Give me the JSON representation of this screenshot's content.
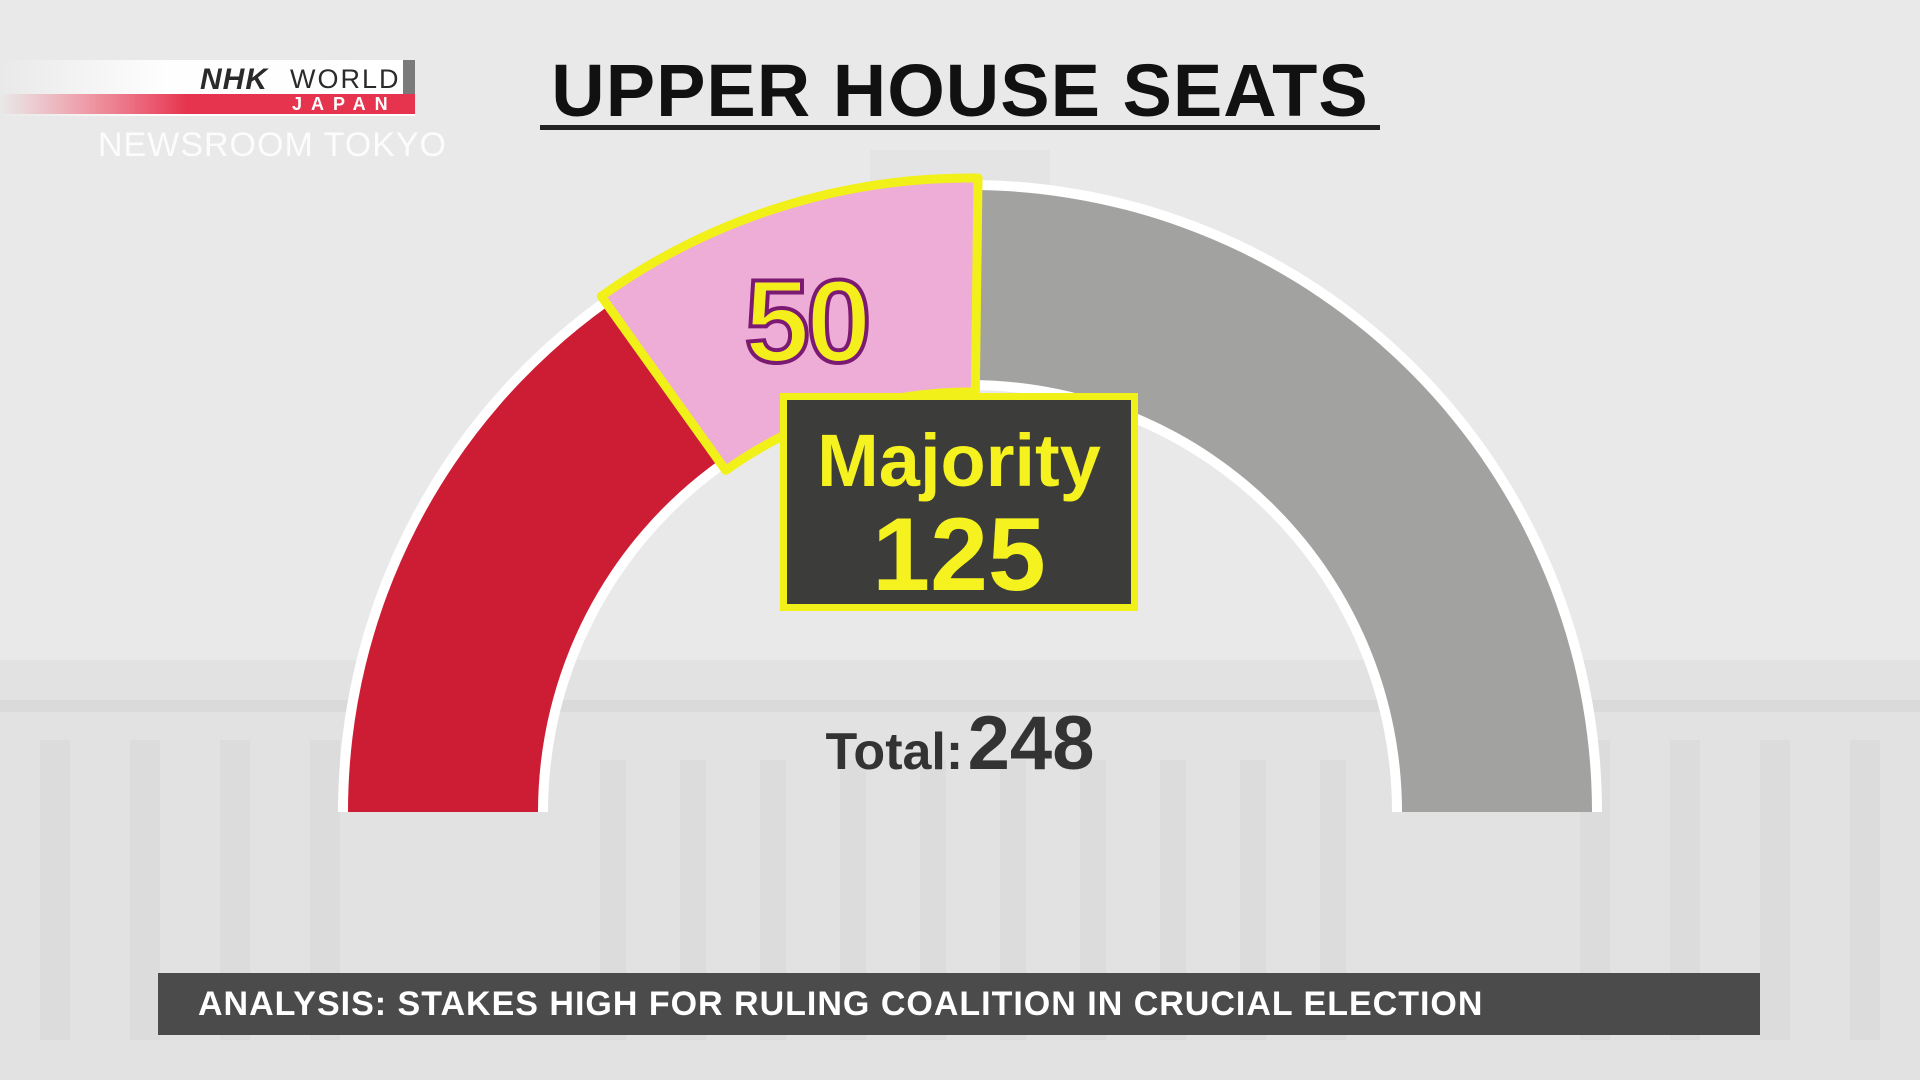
{
  "broadcaster": {
    "logo_nhk": "NHK",
    "logo_world": "WORLD",
    "logo_japan": "JAPAN",
    "program": "NEWSROOM TOKYO"
  },
  "colors": {
    "ruling_red": "#cc1d35",
    "highlight_pink": "#eeadd6",
    "highlight_border": "#f2f019",
    "remaining_gray": "#a2a2a0",
    "majority_bg": "#3c3c3a"
  },
  "chart_data": {
    "type": "pie",
    "title": "UPPER HOUSE SEATS",
    "segments": [
      {
        "name": "",
        "value": 75,
        "color": "#cc1d35"
      },
      {
        "name": "",
        "value": 50,
        "color": "#eeadd6",
        "label": "50",
        "highlighted": true
      },
      {
        "name": "",
        "value": 123,
        "color": "#a2a2a0"
      }
    ],
    "total": 248,
    "total_label": "Total:",
    "majority_label": "Majority",
    "majority_value": 125
  },
  "headline": "ANALYSIS: STAKES HIGH FOR RULING COALITION IN CRUCIAL ELECTION"
}
